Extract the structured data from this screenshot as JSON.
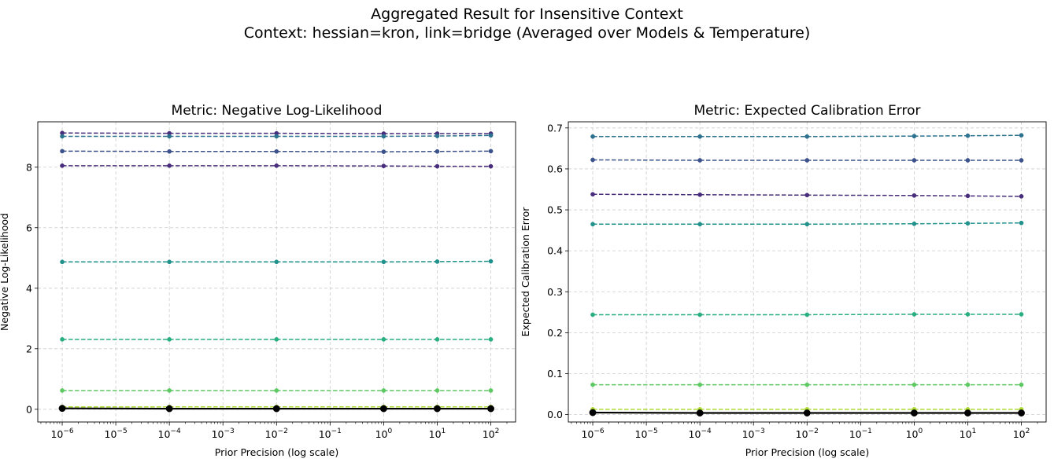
{
  "suptitle": [
    "Aggregated Result for Insensitive Context",
    "Context: hessian=kron, link=bridge (Averaged over Models & Temperature)"
  ],
  "colors": {
    "dark1": "#472d7b",
    "dark2": "#3b528b",
    "mid1": "#2c728e",
    "mid2": "#21918c",
    "teal": "#28ae80",
    "green": "#5ec962",
    "lime": "#addc30",
    "black": "#000000"
  },
  "chart_data": [
    {
      "type": "line",
      "title": "Metric: Negative Log-Likelihood",
      "xlabel": "Prior Precision (log scale)",
      "ylabel": "Negative Log-Likelihood",
      "xscale": "log",
      "x": [
        1e-06,
        0.0001,
        0.01,
        1,
        10,
        100
      ],
      "xlim": [
        3.5e-07,
        290.0
      ],
      "ylim": [
        -0.42,
        9.5
      ],
      "yticks": [
        0,
        2,
        4,
        6,
        8
      ],
      "ytick_labels": [
        "0",
        "2",
        "4",
        "6",
        "8"
      ],
      "xticks": [
        1e-06,
        1e-05,
        0.0001,
        0.001,
        0.01,
        0.1,
        1,
        10,
        100
      ],
      "xtick_exponents": [
        "−6",
        "−5",
        "−4",
        "−3",
        "−2",
        "−1",
        "0",
        "1",
        "2"
      ],
      "grid": true,
      "series": [
        {
          "color_key": "dark1",
          "style": "dashed",
          "values": [
            9.13,
            9.12,
            9.12,
            9.11,
            9.11,
            9.11
          ]
        },
        {
          "color_key": "mid1",
          "style": "dashed",
          "values": [
            9.02,
            9.02,
            9.02,
            9.02,
            9.03,
            9.05
          ]
        },
        {
          "color_key": "dark2",
          "style": "dashed",
          "values": [
            8.53,
            8.52,
            8.52,
            8.51,
            8.52,
            8.53
          ]
        },
        {
          "color_key": "dark1",
          "style": "dashed",
          "values": [
            8.05,
            8.05,
            8.05,
            8.04,
            8.03,
            8.03
          ]
        },
        {
          "color_key": "mid2",
          "style": "dashed",
          "values": [
            4.87,
            4.87,
            4.87,
            4.87,
            4.88,
            4.89
          ]
        },
        {
          "color_key": "teal",
          "style": "dashed",
          "values": [
            2.31,
            2.31,
            2.31,
            2.31,
            2.31,
            2.31
          ]
        },
        {
          "color_key": "green",
          "style": "dashed",
          "values": [
            0.62,
            0.62,
            0.62,
            0.62,
            0.62,
            0.62
          ]
        },
        {
          "color_key": "lime",
          "style": "dashed",
          "values": [
            0.08,
            0.08,
            0.08,
            0.08,
            0.08,
            0.08
          ]
        },
        {
          "color_key": "black",
          "style": "solid",
          "values": [
            0.03,
            0.02,
            0.02,
            0.02,
            0.02,
            0.02
          ]
        }
      ]
    },
    {
      "type": "line",
      "title": "Metric: Expected Calibration Error",
      "xlabel": "Prior Precision (log scale)",
      "ylabel": "Expected Calibration Error",
      "xscale": "log",
      "x": [
        1e-06,
        0.0001,
        0.01,
        1,
        10,
        100
      ],
      "xlim": [
        3.5e-07,
        290.0
      ],
      "ylim": [
        -0.018,
        0.715
      ],
      "yticks": [
        0,
        0.1,
        0.2,
        0.3,
        0.4,
        0.5,
        0.6,
        0.7
      ],
      "ytick_labels": [
        "0.0",
        "0.1",
        "0.2",
        "0.3",
        "0.4",
        "0.5",
        "0.6",
        "0.7"
      ],
      "xticks": [
        1e-06,
        1e-05,
        0.0001,
        0.001,
        0.01,
        0.1,
        1,
        10,
        100
      ],
      "xtick_exponents": [
        "−6",
        "−5",
        "−4",
        "−3",
        "−2",
        "−1",
        "0",
        "1",
        "2"
      ],
      "grid": true,
      "series": [
        {
          "color_key": "mid1",
          "style": "dashed",
          "values": [
            0.679,
            0.679,
            0.679,
            0.68,
            0.681,
            0.682
          ]
        },
        {
          "color_key": "dark2",
          "style": "dashed",
          "values": [
            0.622,
            0.621,
            0.621,
            0.621,
            0.621,
            0.621
          ]
        },
        {
          "color_key": "dark1",
          "style": "dashed",
          "values": [
            0.538,
            0.537,
            0.536,
            0.535,
            0.534,
            0.533
          ]
        },
        {
          "color_key": "mid2",
          "style": "dashed",
          "values": [
            0.465,
            0.465,
            0.465,
            0.466,
            0.467,
            0.468
          ]
        },
        {
          "color_key": "teal",
          "style": "dashed",
          "values": [
            0.244,
            0.244,
            0.244,
            0.245,
            0.245,
            0.245
          ]
        },
        {
          "color_key": "green",
          "style": "dashed",
          "values": [
            0.073,
            0.073,
            0.073,
            0.073,
            0.073,
            0.073
          ]
        },
        {
          "color_key": "lime",
          "style": "dashed",
          "values": [
            0.013,
            0.013,
            0.013,
            0.013,
            0.013,
            0.013
          ]
        },
        {
          "color_key": "black",
          "style": "solid",
          "values": [
            0.005,
            0.004,
            0.004,
            0.004,
            0.004,
            0.004
          ]
        }
      ]
    }
  ]
}
